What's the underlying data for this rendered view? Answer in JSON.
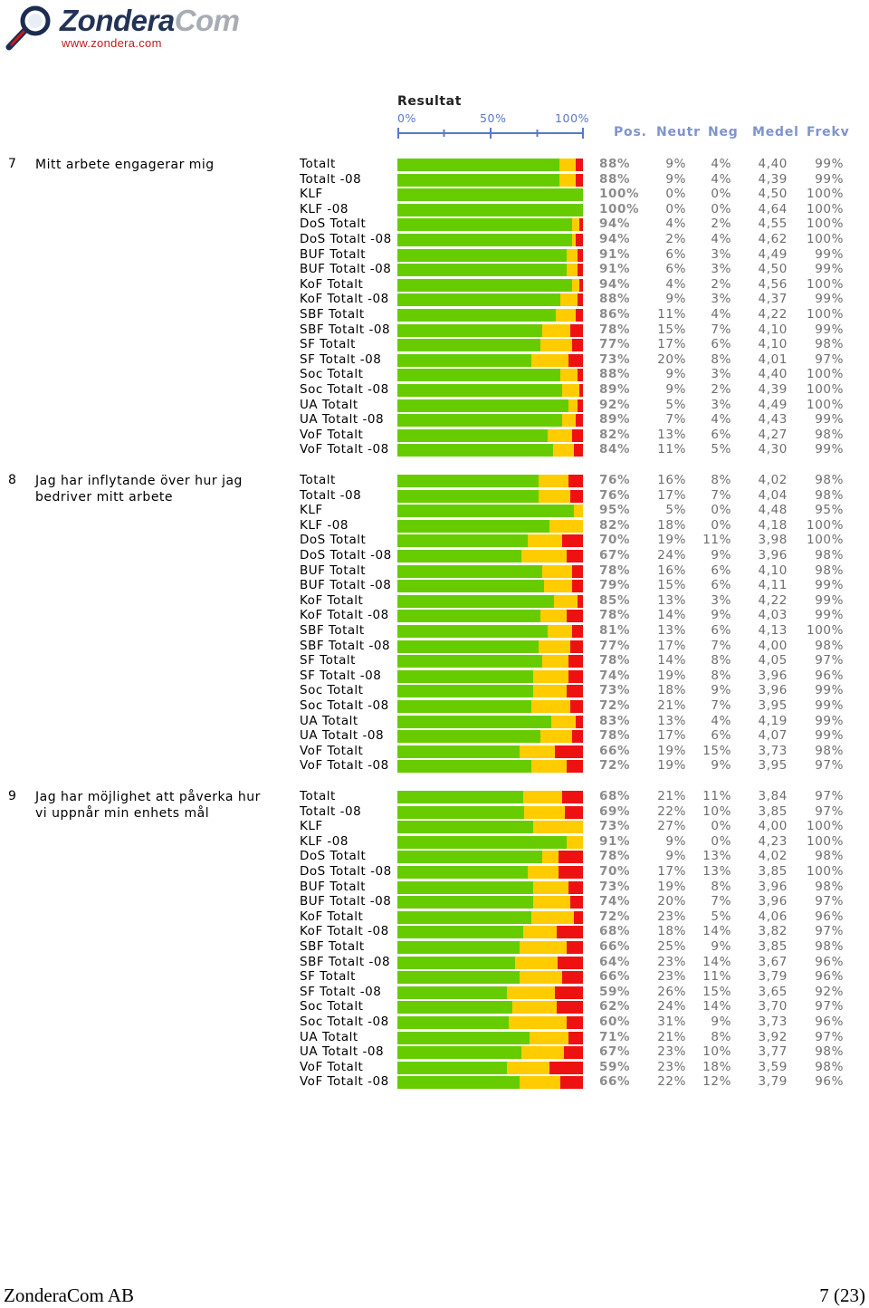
{
  "header": {
    "brand": "Zondera",
    "brand_suffix": "Com",
    "url": "www.zondera.com"
  },
  "chart_title": "Resultat",
  "scale": {
    "ticks": [
      "0%",
      "50%",
      "100%"
    ]
  },
  "columns": {
    "pos": "Pos.",
    "neutr": "Neutr",
    "neg": "Neg",
    "medel": "Medel",
    "frekv": "Frekv"
  },
  "colors": {
    "pos": "#66cc00",
    "neutr": "#ffcc00",
    "neg": "#ee1111"
  },
  "chart_data": {
    "type": "bar",
    "stacked": true,
    "orientation": "horizontal",
    "xlim": [
      0,
      100
    ],
    "series": [
      {
        "name": "Pos.",
        "color": "#66cc00"
      },
      {
        "name": "Neutr",
        "color": "#ffcc00"
      },
      {
        "name": "Neg",
        "color": "#ee1111"
      }
    ],
    "questions": [
      {
        "num": "7",
        "text": "Mitt arbete engagerar mig",
        "rows": [
          {
            "label": "Totalt",
            "pos": 88,
            "neu": 9,
            "neg": 4,
            "medel": "4,40",
            "frekv": "99%"
          },
          {
            "label": "Totalt -08",
            "pos": 88,
            "neu": 9,
            "neg": 4,
            "medel": "4,39",
            "frekv": "99%"
          },
          {
            "label": "KLF",
            "pos": 100,
            "neu": 0,
            "neg": 0,
            "medel": "4,50",
            "frekv": "100%"
          },
          {
            "label": "KLF -08",
            "pos": 100,
            "neu": 0,
            "neg": 0,
            "medel": "4,64",
            "frekv": "100%"
          },
          {
            "label": "DoS Totalt",
            "pos": 94,
            "neu": 4,
            "neg": 2,
            "medel": "4,55",
            "frekv": "100%"
          },
          {
            "label": "DoS Totalt -08",
            "pos": 94,
            "neu": 2,
            "neg": 4,
            "medel": "4,62",
            "frekv": "100%"
          },
          {
            "label": "BUF Totalt",
            "pos": 91,
            "neu": 6,
            "neg": 3,
            "medel": "4,49",
            "frekv": "99%"
          },
          {
            "label": "BUF Totalt -08",
            "pos": 91,
            "neu": 6,
            "neg": 3,
            "medel": "4,50",
            "frekv": "99%"
          },
          {
            "label": "KoF Totalt",
            "pos": 94,
            "neu": 4,
            "neg": 2,
            "medel": "4,56",
            "frekv": "100%"
          },
          {
            "label": "KoF Totalt -08",
            "pos": 88,
            "neu": 9,
            "neg": 3,
            "medel": "4,37",
            "frekv": "99%"
          },
          {
            "label": "SBF Totalt",
            "pos": 86,
            "neu": 11,
            "neg": 4,
            "medel": "4,22",
            "frekv": "100%"
          },
          {
            "label": "SBF Totalt -08",
            "pos": 78,
            "neu": 15,
            "neg": 7,
            "medel": "4,10",
            "frekv": "99%"
          },
          {
            "label": "SF Totalt",
            "pos": 77,
            "neu": 17,
            "neg": 6,
            "medel": "4,10",
            "frekv": "98%"
          },
          {
            "label": "SF Totalt -08",
            "pos": 73,
            "neu": 20,
            "neg": 8,
            "medel": "4,01",
            "frekv": "97%"
          },
          {
            "label": "Soc Totalt",
            "pos": 88,
            "neu": 9,
            "neg": 3,
            "medel": "4,40",
            "frekv": "100%"
          },
          {
            "label": "Soc Totalt -08",
            "pos": 89,
            "neu": 9,
            "neg": 2,
            "medel": "4,39",
            "frekv": "100%"
          },
          {
            "label": "UA Totalt",
            "pos": 92,
            "neu": 5,
            "neg": 3,
            "medel": "4,49",
            "frekv": "100%"
          },
          {
            "label": "UA Totalt -08",
            "pos": 89,
            "neu": 7,
            "neg": 4,
            "medel": "4,43",
            "frekv": "99%"
          },
          {
            "label": "VoF Totalt",
            "pos": 82,
            "neu": 13,
            "neg": 6,
            "medel": "4,27",
            "frekv": "98%"
          },
          {
            "label": "VoF Totalt -08",
            "pos": 84,
            "neu": 11,
            "neg": 5,
            "medel": "4,30",
            "frekv": "99%"
          }
        ]
      },
      {
        "num": "8",
        "text": "Jag har inflytande över hur jag bedriver mitt arbete",
        "rows": [
          {
            "label": "Totalt",
            "pos": 76,
            "neu": 16,
            "neg": 8,
            "medel": "4,02",
            "frekv": "98%"
          },
          {
            "label": "Totalt -08",
            "pos": 76,
            "neu": 17,
            "neg": 7,
            "medel": "4,04",
            "frekv": "98%"
          },
          {
            "label": "KLF",
            "pos": 95,
            "neu": 5,
            "neg": 0,
            "medel": "4,48",
            "frekv": "95%"
          },
          {
            "label": "KLF -08",
            "pos": 82,
            "neu": 18,
            "neg": 0,
            "medel": "4,18",
            "frekv": "100%"
          },
          {
            "label": "DoS Totalt",
            "pos": 70,
            "neu": 19,
            "neg": 11,
            "medel": "3,98",
            "frekv": "100%"
          },
          {
            "label": "DoS Totalt -08",
            "pos": 67,
            "neu": 24,
            "neg": 9,
            "medel": "3,96",
            "frekv": "98%"
          },
          {
            "label": "BUF Totalt",
            "pos": 78,
            "neu": 16,
            "neg": 6,
            "medel": "4,10",
            "frekv": "98%"
          },
          {
            "label": "BUF Totalt -08",
            "pos": 79,
            "neu": 15,
            "neg": 6,
            "medel": "4,11",
            "frekv": "99%"
          },
          {
            "label": "KoF Totalt",
            "pos": 85,
            "neu": 13,
            "neg": 3,
            "medel": "4,22",
            "frekv": "99%"
          },
          {
            "label": "KoF Totalt -08",
            "pos": 78,
            "neu": 14,
            "neg": 9,
            "medel": "4,03",
            "frekv": "99%"
          },
          {
            "label": "SBF Totalt",
            "pos": 81,
            "neu": 13,
            "neg": 6,
            "medel": "4,13",
            "frekv": "100%"
          },
          {
            "label": "SBF Totalt -08",
            "pos": 77,
            "neu": 17,
            "neg": 7,
            "medel": "4,00",
            "frekv": "98%"
          },
          {
            "label": "SF Totalt",
            "pos": 78,
            "neu": 14,
            "neg": 8,
            "medel": "4,05",
            "frekv": "97%"
          },
          {
            "label": "SF Totalt -08",
            "pos": 74,
            "neu": 19,
            "neg": 8,
            "medel": "3,96",
            "frekv": "96%"
          },
          {
            "label": "Soc Totalt",
            "pos": 73,
            "neu": 18,
            "neg": 9,
            "medel": "3,96",
            "frekv": "99%"
          },
          {
            "label": "Soc Totalt -08",
            "pos": 72,
            "neu": 21,
            "neg": 7,
            "medel": "3,95",
            "frekv": "99%"
          },
          {
            "label": "UA Totalt",
            "pos": 83,
            "neu": 13,
            "neg": 4,
            "medel": "4,19",
            "frekv": "99%"
          },
          {
            "label": "UA Totalt -08",
            "pos": 78,
            "neu": 17,
            "neg": 6,
            "medel": "4,07",
            "frekv": "99%"
          },
          {
            "label": "VoF Totalt",
            "pos": 66,
            "neu": 19,
            "neg": 15,
            "medel": "3,73",
            "frekv": "98%"
          },
          {
            "label": "VoF Totalt -08",
            "pos": 72,
            "neu": 19,
            "neg": 9,
            "medel": "3,95",
            "frekv": "97%"
          }
        ]
      },
      {
        "num": "9",
        "text": "Jag har möjlighet att påverka hur vi uppnår min enhets mål",
        "rows": [
          {
            "label": "Totalt",
            "pos": 68,
            "neu": 21,
            "neg": 11,
            "medel": "3,84",
            "frekv": "97%"
          },
          {
            "label": "Totalt -08",
            "pos": 69,
            "neu": 22,
            "neg": 10,
            "medel": "3,85",
            "frekv": "97%"
          },
          {
            "label": "KLF",
            "pos": 73,
            "neu": 27,
            "neg": 0,
            "medel": "4,00",
            "frekv": "100%"
          },
          {
            "label": "KLF -08",
            "pos": 91,
            "neu": 9,
            "neg": 0,
            "medel": "4,23",
            "frekv": "100%"
          },
          {
            "label": "DoS Totalt",
            "pos": 78,
            "neu": 9,
            "neg": 13,
            "medel": "4,02",
            "frekv": "98%"
          },
          {
            "label": "DoS Totalt -08",
            "pos": 70,
            "neu": 17,
            "neg": 13,
            "medel": "3,85",
            "frekv": "100%"
          },
          {
            "label": "BUF Totalt",
            "pos": 73,
            "neu": 19,
            "neg": 8,
            "medel": "3,96",
            "frekv": "98%"
          },
          {
            "label": "BUF Totalt -08",
            "pos": 74,
            "neu": 20,
            "neg": 7,
            "medel": "3,96",
            "frekv": "97%"
          },
          {
            "label": "KoF Totalt",
            "pos": 72,
            "neu": 23,
            "neg": 5,
            "medel": "4,06",
            "frekv": "96%"
          },
          {
            "label": "KoF Totalt -08",
            "pos": 68,
            "neu": 18,
            "neg": 14,
            "medel": "3,82",
            "frekv": "97%"
          },
          {
            "label": "SBF Totalt",
            "pos": 66,
            "neu": 25,
            "neg": 9,
            "medel": "3,85",
            "frekv": "98%"
          },
          {
            "label": "SBF Totalt -08",
            "pos": 64,
            "neu": 23,
            "neg": 14,
            "medel": "3,67",
            "frekv": "96%"
          },
          {
            "label": "SF Totalt",
            "pos": 66,
            "neu": 23,
            "neg": 11,
            "medel": "3,79",
            "frekv": "96%"
          },
          {
            "label": "SF Totalt -08",
            "pos": 59,
            "neu": 26,
            "neg": 15,
            "medel": "3,65",
            "frekv": "92%"
          },
          {
            "label": "Soc Totalt",
            "pos": 62,
            "neu": 24,
            "neg": 14,
            "medel": "3,70",
            "frekv": "97%"
          },
          {
            "label": "Soc Totalt -08",
            "pos": 60,
            "neu": 31,
            "neg": 9,
            "medel": "3,73",
            "frekv": "96%"
          },
          {
            "label": "UA Totalt",
            "pos": 71,
            "neu": 21,
            "neg": 8,
            "medel": "3,92",
            "frekv": "97%"
          },
          {
            "label": "UA Totalt -08",
            "pos": 67,
            "neu": 23,
            "neg": 10,
            "medel": "3,77",
            "frekv": "98%"
          },
          {
            "label": "VoF Totalt",
            "pos": 59,
            "neu": 23,
            "neg": 18,
            "medel": "3,59",
            "frekv": "98%"
          },
          {
            "label": "VoF Totalt -08",
            "pos": 66,
            "neu": 22,
            "neg": 12,
            "medel": "3,79",
            "frekv": "96%"
          }
        ]
      }
    ]
  },
  "footer": {
    "company": "ZonderaCom AB",
    "page": "7 (23)"
  }
}
